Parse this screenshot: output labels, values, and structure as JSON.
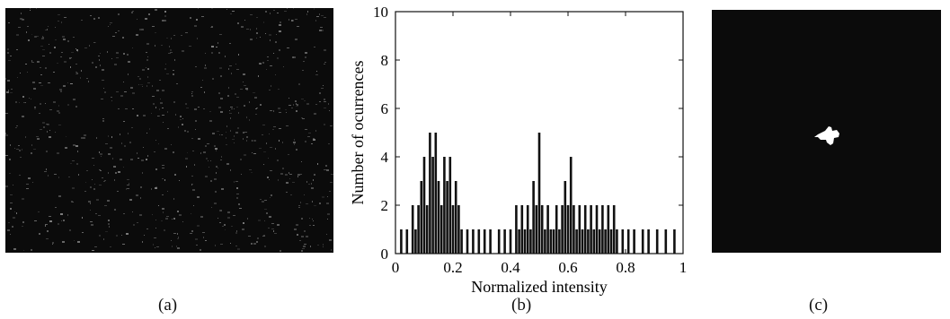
{
  "panels": {
    "a": {
      "caption": "(a)",
      "image": "dark speckled noise texture"
    },
    "b": {
      "caption": "(b)"
    },
    "c": {
      "caption": "(c)",
      "image": "black field with small white blob"
    }
  },
  "colors": {
    "background": "#0b0b0b",
    "bars": "#111111",
    "speckle": "#6a6a6a",
    "blob": "#ffffff"
  },
  "chart_data": {
    "type": "bar",
    "title": "",
    "xlabel": "Normalized intensity",
    "ylabel": "Number of ocurrences",
    "xlim": [
      0,
      1
    ],
    "ylim": [
      0,
      10
    ],
    "xticks": [
      "0",
      "0.2",
      "0.4",
      "0.6",
      "0.8",
      "1"
    ],
    "yticks": [
      "0",
      "2",
      "4",
      "6",
      "8",
      "10"
    ],
    "grid": false,
    "bins": [
      {
        "x": 0.02,
        "y": 1
      },
      {
        "x": 0.04,
        "y": 1
      },
      {
        "x": 0.06,
        "y": 2
      },
      {
        "x": 0.07,
        "y": 1
      },
      {
        "x": 0.08,
        "y": 2
      },
      {
        "x": 0.09,
        "y": 3
      },
      {
        "x": 0.1,
        "y": 4
      },
      {
        "x": 0.11,
        "y": 2
      },
      {
        "x": 0.12,
        "y": 5
      },
      {
        "x": 0.13,
        "y": 4
      },
      {
        "x": 0.14,
        "y": 5
      },
      {
        "x": 0.15,
        "y": 3
      },
      {
        "x": 0.16,
        "y": 2
      },
      {
        "x": 0.17,
        "y": 4
      },
      {
        "x": 0.18,
        "y": 3
      },
      {
        "x": 0.19,
        "y": 4
      },
      {
        "x": 0.2,
        "y": 2
      },
      {
        "x": 0.21,
        "y": 3
      },
      {
        "x": 0.22,
        "y": 2
      },
      {
        "x": 0.23,
        "y": 1
      },
      {
        "x": 0.25,
        "y": 1
      },
      {
        "x": 0.27,
        "y": 1
      },
      {
        "x": 0.29,
        "y": 1
      },
      {
        "x": 0.31,
        "y": 1
      },
      {
        "x": 0.33,
        "y": 1
      },
      {
        "x": 0.36,
        "y": 1
      },
      {
        "x": 0.38,
        "y": 1
      },
      {
        "x": 0.4,
        "y": 1
      },
      {
        "x": 0.42,
        "y": 2
      },
      {
        "x": 0.43,
        "y": 1
      },
      {
        "x": 0.44,
        "y": 2
      },
      {
        "x": 0.45,
        "y": 1
      },
      {
        "x": 0.46,
        "y": 2
      },
      {
        "x": 0.47,
        "y": 1
      },
      {
        "x": 0.48,
        "y": 3
      },
      {
        "x": 0.49,
        "y": 2
      },
      {
        "x": 0.5,
        "y": 5
      },
      {
        "x": 0.51,
        "y": 2
      },
      {
        "x": 0.52,
        "y": 1
      },
      {
        "x": 0.53,
        "y": 2
      },
      {
        "x": 0.54,
        "y": 1
      },
      {
        "x": 0.55,
        "y": 1
      },
      {
        "x": 0.56,
        "y": 2
      },
      {
        "x": 0.57,
        "y": 1
      },
      {
        "x": 0.58,
        "y": 2
      },
      {
        "x": 0.59,
        "y": 3
      },
      {
        "x": 0.6,
        "y": 2
      },
      {
        "x": 0.61,
        "y": 4
      },
      {
        "x": 0.62,
        "y": 2
      },
      {
        "x": 0.63,
        "y": 1
      },
      {
        "x": 0.64,
        "y": 2
      },
      {
        "x": 0.65,
        "y": 1
      },
      {
        "x": 0.66,
        "y": 2
      },
      {
        "x": 0.67,
        "y": 1
      },
      {
        "x": 0.68,
        "y": 2
      },
      {
        "x": 0.69,
        "y": 1
      },
      {
        "x": 0.7,
        "y": 2
      },
      {
        "x": 0.71,
        "y": 1
      },
      {
        "x": 0.72,
        "y": 2
      },
      {
        "x": 0.73,
        "y": 1
      },
      {
        "x": 0.74,
        "y": 2
      },
      {
        "x": 0.75,
        "y": 1
      },
      {
        "x": 0.76,
        "y": 2
      },
      {
        "x": 0.77,
        "y": 1
      },
      {
        "x": 0.79,
        "y": 1
      },
      {
        "x": 0.81,
        "y": 1
      },
      {
        "x": 0.83,
        "y": 1
      },
      {
        "x": 0.86,
        "y": 1
      },
      {
        "x": 0.88,
        "y": 1
      },
      {
        "x": 0.91,
        "y": 1
      },
      {
        "x": 0.94,
        "y": 1
      },
      {
        "x": 0.97,
        "y": 1
      }
    ]
  }
}
